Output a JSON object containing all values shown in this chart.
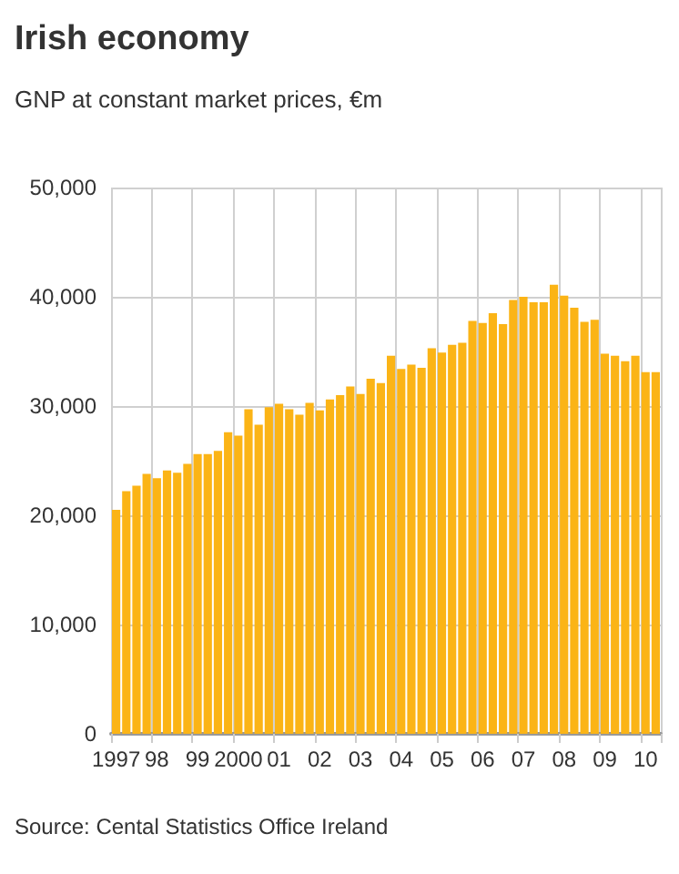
{
  "chart_data": {
    "type": "bar",
    "title": "Irish economy",
    "subtitle": "GNP at constant market prices, €m",
    "annotations": [
      "Source: Cental Statistics Office Ireland"
    ],
    "categories": [
      "1997",
      null,
      null,
      null,
      "98",
      null,
      null,
      null,
      "99",
      null,
      null,
      null,
      "2000",
      null,
      null,
      null,
      "01",
      null,
      null,
      null,
      "02",
      null,
      null,
      null,
      "03",
      null,
      null,
      null,
      "04",
      null,
      null,
      null,
      "05",
      null,
      null,
      null,
      "06",
      null,
      null,
      null,
      "07",
      null,
      null,
      null,
      "08",
      null,
      null,
      null,
      "09",
      null,
      null,
      null,
      "10",
      null
    ],
    "values": [
      20500,
      22200,
      22700,
      23800,
      23400,
      24100,
      23900,
      24700,
      25600,
      25600,
      25900,
      27600,
      27300,
      29700,
      28300,
      29900,
      30200,
      29700,
      29200,
      30300,
      29600,
      30600,
      31000,
      31800,
      31100,
      32500,
      32100,
      34600,
      33400,
      33800,
      33500,
      35300,
      34900,
      35600,
      35800,
      37800,
      37600,
      38500,
      37500,
      39700,
      40000,
      39500,
      39500,
      41100,
      40100,
      39000,
      37700,
      37900,
      34800,
      34600,
      34100,
      34600,
      33100,
      33100
    ],
    "color": "#fbb416",
    "ylim": [
      0,
      50000
    ],
    "yticks": [
      {
        "value": 0,
        "label": "0"
      },
      {
        "value": 10000,
        "label": "10,000"
      },
      {
        "value": 20000,
        "label": "20,000"
      },
      {
        "value": 30000,
        "label": "30,000"
      },
      {
        "value": 40000,
        "label": "40,000"
      },
      {
        "value": 50000,
        "label": "50,000"
      }
    ],
    "grid": true
  }
}
